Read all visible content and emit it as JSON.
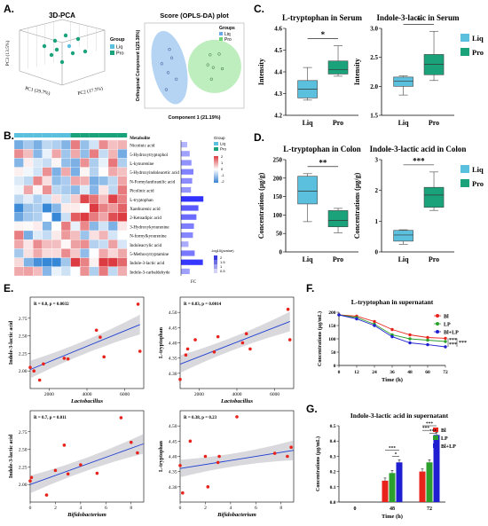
{
  "panel_labels": {
    "A": "A.",
    "B": "B.",
    "C": "C.",
    "D": "D.",
    "E": "E.",
    "F": "F.",
    "G": "G."
  },
  "colors": {
    "liq": "#5bc0de",
    "pro": "#1aa37a",
    "bl": "#e8231c",
    "lp": "#2ca02c",
    "bllp": "#1f1fd1",
    "reg": "#1f3fd1"
  },
  "chart_data": [
    {
      "id": "A1",
      "type": "scatter",
      "title": "3D-PCA",
      "xlabel": "PC1 (29.7%)",
      "ylabel": "PC2 (17.5%)",
      "zlabel": "PC3 (13.5%)",
      "legend": {
        "title": "Group",
        "entries": [
          "Liq",
          "Pro"
        ]
      }
    },
    {
      "id": "A2",
      "type": "scatter",
      "title": "Score (OPLS-DA) plot",
      "xlabel": "Component 1 (21.19%)",
      "ylabel": "Orthogonal Component 1(25.38%)",
      "legend": {
        "title": "Groups",
        "entries": [
          "Liq",
          "Pro"
        ]
      },
      "series": [
        {
          "name": "Liq",
          "points": [
            [
              -0.55,
              0.42
            ],
            [
              -0.72,
              0.05
            ],
            [
              -0.58,
              -0.18
            ],
            [
              -0.4,
              -0.35
            ],
            [
              -0.62,
              -0.62
            ],
            [
              -0.5,
              0.2
            ]
          ]
        },
        {
          "name": "Pro",
          "points": [
            [
              0.35,
              0.28
            ],
            [
              0.55,
              0.3
            ],
            [
              0.42,
              -0.05
            ],
            [
              0.3,
              0.02
            ],
            [
              0.62,
              -0.08
            ],
            [
              0.38,
              -0.35
            ]
          ]
        }
      ]
    },
    {
      "id": "B",
      "type": "heatmap",
      "header": "Metabolite",
      "rows": [
        "Nicotinic acid",
        "5-Hydroxytryptophol",
        "L-kynurenine",
        "5-Hydroxyindoleacetic acid",
        "N-Formylanthranilic acid",
        "Picolinic acid",
        "L-tryptophan",
        "Xanthurenic acid",
        "2-Ketoadipic acid",
        "3-Hydroxykynurenine",
        "N-formylkynurenine",
        "Indoleacrylic acid",
        "5-Methoxytryptamine",
        "Indole-3-lactic acid",
        "Indole-3-carbaldehyde"
      ],
      "fc_values": [
        0.25,
        0.35,
        0.42,
        0.5,
        0.45,
        0.4,
        0.9,
        0.7,
        0.62,
        0.52,
        0.48,
        0.3,
        0.55,
        0.88,
        0.35
      ],
      "legend": {
        "title": "Group",
        "entries": [
          "Liq",
          "Pro"
        ]
      },
      "color_scale": [
        "2",
        "1",
        "0",
        "-1",
        "-2"
      ],
      "pvalue_legend": {
        "title": "-log10(pvalue)",
        "ticks": [
          "2",
          "1.5",
          "1",
          "0.5"
        ]
      },
      "fc_label": "FC"
    },
    {
      "id": "C1",
      "type": "box",
      "title": "L-tryptophan in Serum",
      "ylabel": "Intensity",
      "categories": [
        "Liq",
        "Pro"
      ],
      "ylim": [
        4.2,
        4.6
      ],
      "yticks": [
        4.2,
        4.3,
        4.4,
        4.5,
        4.6
      ],
      "boxes": [
        {
          "min": 4.27,
          "q1": 4.28,
          "median": 4.32,
          "q3": 4.36,
          "max": 4.42
        },
        {
          "min": 4.38,
          "q1": 4.39,
          "median": 4.41,
          "q3": 4.45,
          "max": 4.52
        }
      ],
      "sig": "*"
    },
    {
      "id": "C2",
      "type": "box",
      "title": "Indole-3-lactic in Serum",
      "ylabel": "Intensity",
      "categories": [
        "Liq",
        "Pro"
      ],
      "ylim": [
        1.5,
        3.0
      ],
      "yticks": [
        1.5,
        2.0,
        2.5,
        3.0
      ],
      "boxes": [
        {
          "min": 1.85,
          "q1": 2.0,
          "median": 2.09,
          "q3": 2.16,
          "max": 2.18
        },
        {
          "min": 2.1,
          "q1": 2.2,
          "median": 2.38,
          "q3": 2.55,
          "max": 2.95
        }
      ],
      "sig": "*",
      "legend": [
        "Liq",
        "Pro"
      ]
    },
    {
      "id": "D1",
      "type": "box",
      "title": "L-tryptophan in Colon",
      "ylabel": "Concentrations (μg/g)",
      "categories": [
        "Liq",
        "Pro"
      ],
      "ylim": [
        0,
        250
      ],
      "yticks": [
        0,
        50,
        100,
        150,
        200,
        250
      ],
      "boxes": [
        {
          "min": 82,
          "q1": 130,
          "median": 165,
          "q3": 205,
          "max": 212
        },
        {
          "min": 52,
          "q1": 68,
          "median": 85,
          "q3": 112,
          "max": 118
        }
      ],
      "sig": "**"
    },
    {
      "id": "D2",
      "type": "box",
      "title": "Indole-3-lactic acid in Colon",
      "ylabel": "Concentrations (μg/g)",
      "categories": [
        "Liq",
        "Pro"
      ],
      "ylim": [
        0,
        3
      ],
      "yticks": [
        0,
        1,
        2,
        3
      ],
      "boxes": [
        {
          "min": 0.25,
          "q1": 0.35,
          "median": 0.55,
          "q3": 0.7,
          "max": 0.72
        },
        {
          "min": 1.35,
          "q1": 1.45,
          "median": 1.85,
          "q3": 2.1,
          "max": 2.6
        }
      ],
      "sig": "***",
      "legend": [
        "Liq",
        "Pro"
      ]
    },
    {
      "id": "E1",
      "type": "scatter",
      "xlabel": "Lactobacillus",
      "ylabel": "Indole-3-lactic acid",
      "annotation": "R = 0.8, p = 0.0032",
      "xlim": [
        1000,
        7000
      ],
      "ylim": [
        1.75,
        3.05
      ],
      "xticks": [
        2000,
        4000,
        6000
      ],
      "yticks": [
        2.0,
        2.25,
        2.5,
        2.75
      ],
      "points": [
        [
          1000,
          2.05
        ],
        [
          1200,
          2.0
        ],
        [
          1500,
          1.87
        ],
        [
          1700,
          2.1
        ],
        [
          2800,
          2.18
        ],
        [
          3000,
          2.17
        ],
        [
          4500,
          2.58
        ],
        [
          4700,
          2.48
        ],
        [
          4900,
          2.2
        ],
        [
          6700,
          2.95
        ],
        [
          6800,
          2.28
        ]
      ],
      "fit": [
        [
          1000,
          2.02
        ],
        [
          6800,
          2.66
        ]
      ]
    },
    {
      "id": "E2",
      "type": "scatter",
      "xlabel": "Lactobacillus",
      "ylabel": "L-tryptophan",
      "annotation": "R = 0.83, p = 0.0014",
      "xlim": [
        1000,
        7000
      ],
      "ylim": [
        4.25,
        4.55
      ],
      "xticks": [
        2000,
        4000,
        6000
      ],
      "yticks": [
        4.3,
        4.35,
        4.4,
        4.45,
        4.5
      ],
      "points": [
        [
          1000,
          4.28
        ],
        [
          1300,
          4.36
        ],
        [
          1400,
          4.38
        ],
        [
          1800,
          4.41
        ],
        [
          2800,
          4.37
        ],
        [
          3000,
          4.42
        ],
        [
          4300,
          4.4
        ],
        [
          4500,
          4.43
        ],
        [
          4700,
          4.38
        ],
        [
          6700,
          4.51
        ],
        [
          6800,
          4.41
        ]
      ],
      "fit": [
        [
          1000,
          4.33
        ],
        [
          6800,
          4.47
        ]
      ]
    },
    {
      "id": "E3",
      "type": "scatter",
      "xlabel": "Bifidobacterium",
      "ylabel": "Indole-3-lactic acid",
      "annotation": "R = 0.7, p = 0.011",
      "xlim": [
        0,
        9
      ],
      "ylim": [
        1.75,
        3.05
      ],
      "xticks": [
        0,
        2,
        4,
        6,
        8
      ],
      "yticks": [
        2.0,
        2.25,
        2.5,
        2.75
      ],
      "points": [
        [
          0,
          2.05
        ],
        [
          0.1,
          2.1
        ],
        [
          1.3,
          1.85
        ],
        [
          2.0,
          2.2
        ],
        [
          2.7,
          2.56
        ],
        [
          3.0,
          2.15
        ],
        [
          4.0,
          2.28
        ],
        [
          5.3,
          2.16
        ],
        [
          7.2,
          2.95
        ],
        [
          8.0,
          2.6
        ],
        [
          8.5,
          2.45
        ]
      ],
      "fit": [
        [
          0,
          2.0
        ],
        [
          9,
          2.58
        ]
      ]
    },
    {
      "id": "E4",
      "type": "scatter",
      "xlabel": "Bifidobacterium",
      "ylabel": "L-tryptophan",
      "annotation": "R = 0.38, p = 0.23",
      "xlim": [
        0,
        9
      ],
      "ylim": [
        4.25,
        4.55
      ],
      "xticks": [
        0,
        2,
        4,
        6,
        8
      ],
      "yticks": [
        4.3,
        4.35,
        4.4,
        4.45,
        4.5
      ],
      "points": [
        [
          0,
          4.37
        ],
        [
          0.2,
          4.28
        ],
        [
          2.0,
          4.4
        ],
        [
          2.2,
          4.3
        ],
        [
          3.0,
          4.38
        ],
        [
          3.1,
          4.4
        ],
        [
          4.5,
          4.53
        ],
        [
          7.5,
          4.41
        ],
        [
          8.5,
          4.4
        ],
        [
          8.8,
          4.43
        ],
        [
          0.8,
          4.45
        ]
      ],
      "fit": [
        [
          0,
          4.36
        ],
        [
          9,
          4.42
        ]
      ]
    },
    {
      "id": "F",
      "type": "line",
      "title": "L-tryptophan in supernatant",
      "xlabel": "Time (h)",
      "ylabel": "Concentrations (μg/mL)",
      "x": [
        0,
        12,
        24,
        36,
        48,
        60,
        72
      ],
      "xlim": [
        0,
        72
      ],
      "ylim": [
        0,
        200
      ],
      "yticks": [
        0,
        50,
        100,
        150,
        200
      ],
      "series": [
        {
          "name": "Bl",
          "values": [
            190,
            185,
            165,
            135,
            115,
            105,
            102
          ]
        },
        {
          "name": "LP",
          "values": [
            190,
            180,
            155,
            115,
            100,
            95,
            90
          ]
        },
        {
          "name": "Bl+LP",
          "values": [
            190,
            175,
            150,
            108,
            85,
            78,
            70
          ]
        }
      ],
      "sig": [
        "***",
        "***",
        "***"
      ]
    },
    {
      "id": "G",
      "type": "bar",
      "title": "Indole-3-lactic acid in supernatant",
      "xlabel": "Time (h)",
      "ylabel": "Concentrations (μg/mL)",
      "categories": [
        "0",
        "48",
        "72"
      ],
      "ylim": [
        0,
        0.5
      ],
      "yticks": [
        0.0,
        0.1,
        0.2,
        0.3,
        0.4,
        0.5
      ],
      "series": [
        {
          "name": "Bl",
          "values": [
            0.0,
            0.14,
            0.2
          ]
        },
        {
          "name": "LP",
          "values": [
            0.0,
            0.19,
            0.26
          ]
        },
        {
          "name": "Bl+LP",
          "values": [
            0.0,
            0.26,
            0.44
          ]
        }
      ],
      "sig": [
        "***",
        "*",
        "***",
        "***",
        "***"
      ]
    }
  ]
}
